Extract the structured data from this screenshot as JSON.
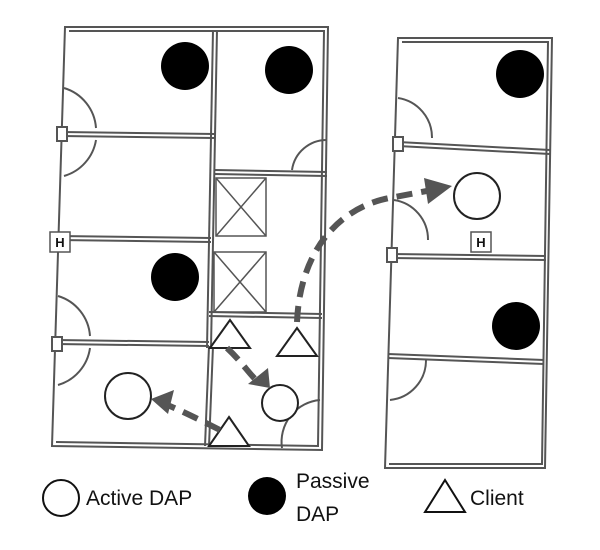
{
  "legend": {
    "active_dap": "Active DAP",
    "passive_dap_line1": "Passive",
    "passive_dap_line2": "DAP",
    "client": "Client"
  },
  "markers": {
    "hall_left": "H",
    "hall_right": "H"
  },
  "colors": {
    "wall": "#555555",
    "passive_fill": "#000000",
    "arrow": "#555555",
    "active_fill": "#ffffff"
  },
  "icons": [
    "active-dap-icon",
    "passive-dap-icon",
    "client-icon",
    "elevator-icon",
    "hallway-marker-icon"
  ]
}
